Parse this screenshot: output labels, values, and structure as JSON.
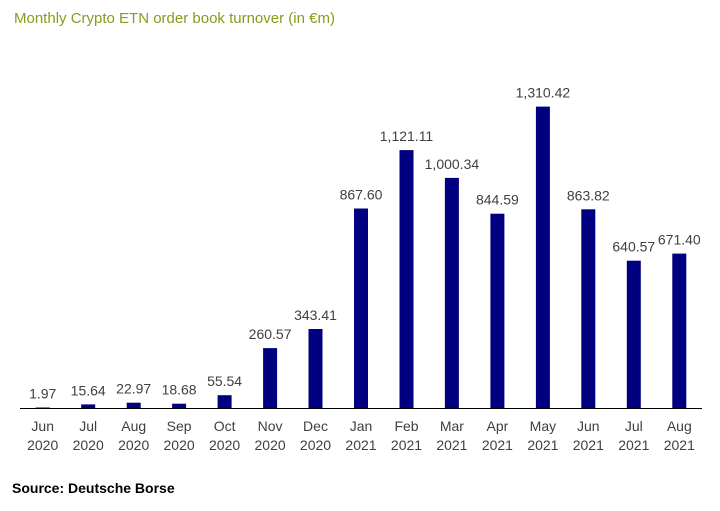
{
  "title": "Monthly Crypto ETN order book turnover (in €m)",
  "source": "Source: Deutsche Borse",
  "colors": {
    "bar": "#000080",
    "title": "#8a9a1c",
    "axis": "#000000",
    "text": "#404040"
  },
  "chart_data": {
    "type": "bar",
    "title": "Monthly Crypto ETN order book turnover (in €m)",
    "categories": [
      [
        "Jun",
        "2020"
      ],
      [
        "Jul",
        "2020"
      ],
      [
        "Aug",
        "2020"
      ],
      [
        "Sep",
        "2020"
      ],
      [
        "Oct",
        "2020"
      ],
      [
        "Nov",
        "2020"
      ],
      [
        "Dec",
        "2020"
      ],
      [
        "Jan",
        "2021"
      ],
      [
        "Feb",
        "2021"
      ],
      [
        "Mar",
        "2021"
      ],
      [
        "Apr",
        "2021"
      ],
      [
        "May",
        "2021"
      ],
      [
        "Jun",
        "2021"
      ],
      [
        "Jul",
        "2021"
      ],
      [
        "Aug",
        "2021"
      ]
    ],
    "values": [
      1.97,
      15.64,
      22.97,
      18.68,
      55.54,
      260.57,
      343.41,
      867.6,
      1121.11,
      1000.34,
      844.59,
      1310.42,
      863.82,
      640.57,
      671.4
    ],
    "data_labels": [
      "1.97",
      "15.64",
      "22.97",
      "18.68",
      "55.54",
      "260.57",
      "343.41",
      "867.60",
      "1,121.11",
      "1,000.34",
      "844.59",
      "1,310.42",
      "863.82",
      "640.57",
      "671.40"
    ],
    "xlabel": "",
    "ylabel": "",
    "ylim": [
      0,
      1400
    ],
    "grid": false,
    "legend": "none"
  }
}
